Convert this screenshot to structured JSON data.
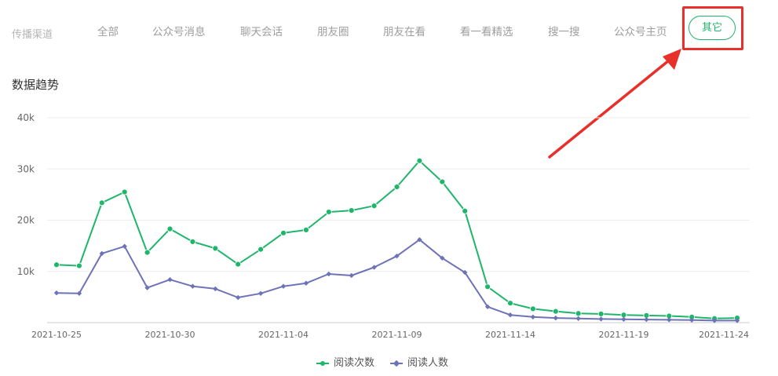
{
  "tabs": {
    "channel_label": "传播渠道",
    "items": [
      "全部",
      "公众号消息",
      "聊天会话",
      "朋友圈",
      "朋友在看",
      "看一看精选",
      "搜一搜",
      "公众号主页"
    ],
    "active": "其它"
  },
  "section_title": "数据趋势",
  "colors": {
    "accent": "#1fb56b",
    "series1": "#1fb56b",
    "series2": "#6e73b8",
    "highlight": "#e8302a"
  },
  "chart_data": {
    "type": "line",
    "title": "",
    "xlabel": "",
    "ylabel": "",
    "x": [
      "2021-10-25",
      "2021-10-26",
      "2021-10-27",
      "2021-10-28",
      "2021-10-29",
      "2021-10-30",
      "2021-10-31",
      "2021-11-01",
      "2021-11-02",
      "2021-11-03",
      "2021-11-04",
      "2021-11-05",
      "2021-11-06",
      "2021-11-07",
      "2021-11-08",
      "2021-11-09",
      "2021-11-10",
      "2021-11-11",
      "2021-11-12",
      "2021-11-13",
      "2021-11-14",
      "2021-11-15",
      "2021-11-16",
      "2021-11-17",
      "2021-11-18",
      "2021-11-19",
      "2021-11-20",
      "2021-11-21",
      "2021-11-22",
      "2021-11-23",
      "2021-11-24"
    ],
    "xticks": [
      "2021-10-25",
      "2021-10-30",
      "2021-11-04",
      "2021-11-09",
      "2021-11-14",
      "2021-11-19",
      "2021-11-24"
    ],
    "yticks": [
      "10k",
      "20k",
      "30k",
      "40k"
    ],
    "ylim": [
      0,
      40000
    ],
    "grid": true,
    "legend_position": "bottom",
    "series": [
      {
        "name": "阅读次数",
        "marker": "circle",
        "values": [
          11300,
          11100,
          23400,
          25500,
          13700,
          18300,
          15800,
          14500,
          11400,
          14300,
          17500,
          18100,
          21600,
          21900,
          22800,
          26500,
          31600,
          27500,
          21800,
          7000,
          3800,
          2700,
          2200,
          1800,
          1700,
          1500,
          1400,
          1300,
          1100,
          800,
          900
        ]
      },
      {
        "name": "阅读人数",
        "marker": "diamond",
        "values": [
          5800,
          5700,
          13500,
          14900,
          6800,
          8400,
          7100,
          6600,
          4900,
          5700,
          7100,
          7700,
          9500,
          9200,
          10800,
          13000,
          16200,
          12600,
          9800,
          3100,
          1500,
          1100,
          900,
          800,
          700,
          650,
          600,
          550,
          500,
          400,
          400
        ]
      }
    ]
  }
}
